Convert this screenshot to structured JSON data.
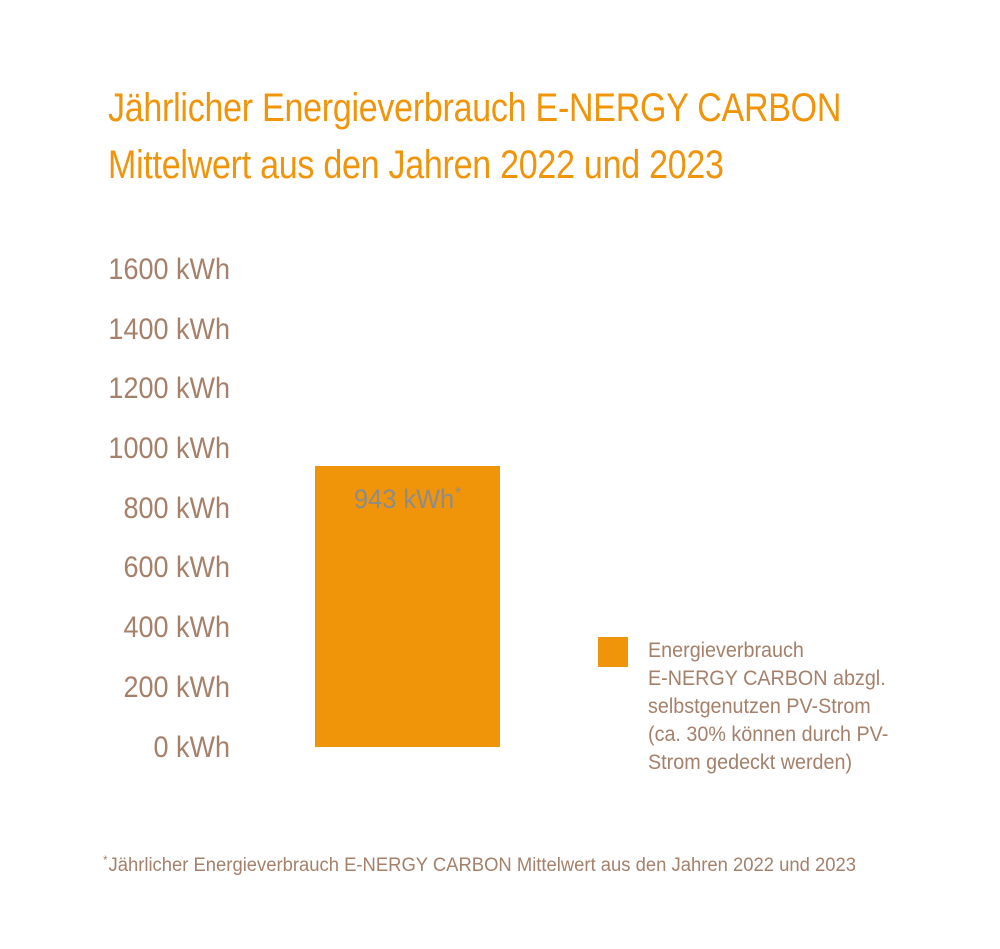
{
  "title": {
    "line1": "Jährlicher Energieverbrauch E-NERGY CARBON",
    "line2": "Mittelwert aus den Jahren 2022 und 2023"
  },
  "colors": {
    "accent_orange": "#F0940A",
    "text_brown": "#A5806B",
    "bar_label_gray": "#8C8C8C",
    "background": "#FFFFFF"
  },
  "chart_data": {
    "type": "bar",
    "title": "Jährlicher Energieverbrauch E-NERGY CARBON Mittelwert aus den Jahren 2022 und 2023",
    "categories": [
      "Energieverbrauch E-NERGY CARBON abzgl. selbstgenutzen PV-Strom"
    ],
    "values": [
      943
    ],
    "unit": "kWh",
    "bar_label": "943 kWh",
    "bar_label_marker": "*",
    "bar_color": "#F0940A",
    "xlabel": "",
    "ylabel": "",
    "ylim": [
      0,
      1600
    ],
    "ytick_step": 200,
    "yticks": [
      "1600 kWh",
      "1400 kWh",
      "1200 kWh",
      "1000 kWh",
      "800 kWh",
      "600 kWh",
      "400 kWh",
      "200 kWh",
      "0 kWh"
    ],
    "ytick_values": [
      1600,
      1400,
      1200,
      1000,
      800,
      600,
      400,
      200,
      0
    ],
    "grid": false,
    "legend_position": "right"
  },
  "legend": {
    "swatch_color": "#F0940A",
    "text": "Energieverbrauch\nE-NERGY CARBON abzgl.\nselbstgenutzen PV-Strom\n(ca. 30% können durch PV-\nStrom gedeckt werden)"
  },
  "footnote": {
    "marker": "*",
    "text": "Jährlicher Energieverbrauch E-NERGY CARBON Mittelwert aus den Jahren 2022 und 2023"
  }
}
